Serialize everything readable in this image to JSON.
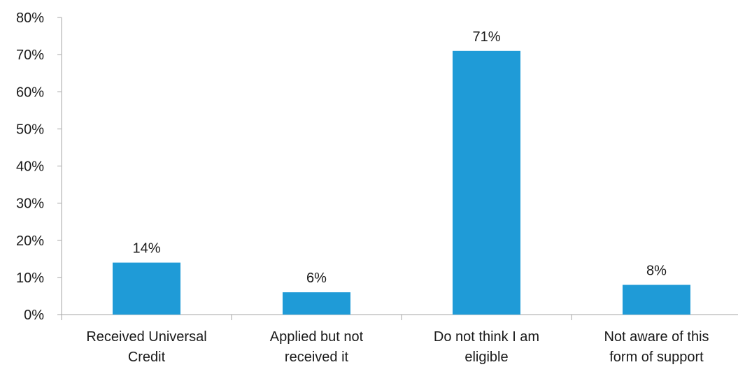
{
  "chart_data": {
    "type": "bar",
    "categories": [
      [
        "Received Universal",
        "Credit"
      ],
      [
        "Applied but not",
        "received it"
      ],
      [
        "Do not think I am",
        "eligible"
      ],
      [
        "Not aware of this",
        "form of support"
      ]
    ],
    "values": [
      14,
      6,
      71,
      8
    ],
    "data_labels": [
      "14%",
      "6%",
      "71%",
      "8%"
    ],
    "y_ticks": [
      "0%",
      "10%",
      "20%",
      "30%",
      "40%",
      "50%",
      "60%",
      "70%",
      "80%"
    ],
    "ylim": [
      0,
      80
    ],
    "title": "",
    "xlabel": "",
    "ylabel": "",
    "grid": false,
    "bar_color": "#1f9bd7"
  }
}
